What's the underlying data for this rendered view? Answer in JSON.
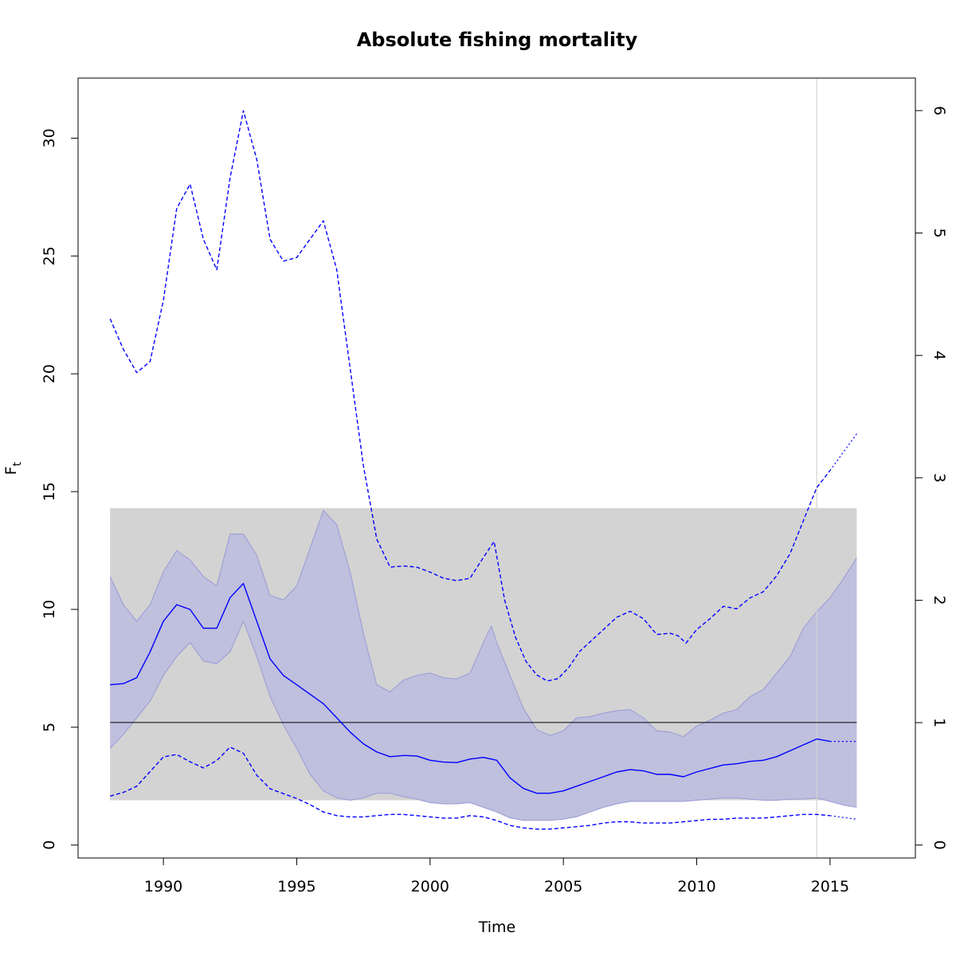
{
  "chart_data": {
    "type": "line",
    "title": "Absolute fishing mortality",
    "xlabel": "Time",
    "ylabel": "F",
    "ylabel_subscript": "t",
    "xlim": [
      1986.8,
      2018.2
    ],
    "ylim": [
      -0.55,
      32.55
    ],
    "ylim_right": [
      -0.106,
      6.266
    ],
    "x_ticks": [
      1990,
      1995,
      2000,
      2005,
      2010,
      2015
    ],
    "y_ticks": [
      0,
      5,
      10,
      15,
      20,
      25,
      30
    ],
    "y_ticks_right": [
      0,
      1,
      2,
      3,
      4,
      5,
      6
    ],
    "grid": false,
    "colors": {
      "estimate": "#0000ff",
      "ci_fill": "#b8b8d8",
      "ci_fill_light": "#e0e0ff",
      "reference_band": "#d3d3d3",
      "reference_line": "#000000",
      "vline": "#d3d3d3"
    },
    "reference_band": {
      "x": [
        1988,
        2016
      ],
      "y": [
        1.9,
        14.3
      ]
    },
    "reference_line": {
      "x": [
        1988,
        2016
      ],
      "y": 5.2
    },
    "vline_x": 2014.5,
    "ci_upper": {
      "x": [
        1988,
        1988.5,
        1989,
        1989.5,
        1990,
        1990.5,
        1991,
        1991.5,
        1992,
        1992.5,
        1993,
        1993.5,
        1994,
        1994.5,
        1995,
        1995.5,
        1996,
        1996.5,
        1997,
        1997.5,
        1998,
        1998.5,
        1999,
        1999.5,
        2000,
        2000.5,
        2001,
        2001.5,
        2002,
        2002.3,
        2002.5,
        2003,
        2003.5,
        2004,
        2004.5,
        2005,
        2005.5,
        2006,
        2006.5,
        2007,
        2007.5,
        2008,
        2008.5,
        2009,
        2009.5,
        2010,
        2010.5,
        2011,
        2011.5,
        2012,
        2012.5,
        2013,
        2013.5,
        2014,
        2014.5,
        2015,
        2015.5,
        2016
      ],
      "values": [
        11.4,
        10.2,
        9.5,
        10.2,
        11.6,
        12.5,
        12.1,
        11.4,
        11.0,
        13.2,
        13.2,
        12.3,
        10.6,
        10.4,
        11.0,
        12.6,
        14.2,
        13.6,
        11.6,
        9.0,
        6.8,
        6.5,
        7.0,
        7.2,
        7.3,
        7.1,
        7.05,
        7.3,
        8.6,
        9.3,
        8.6,
        7.2,
        5.8,
        4.9,
        4.65,
        4.85,
        5.4,
        5.45,
        5.6,
        5.7,
        5.75,
        5.4,
        4.85,
        4.8,
        4.6,
        5.05,
        5.3,
        5.6,
        5.75,
        6.3,
        6.6,
        7.3,
        8.0,
        9.2,
        9.9,
        10.5,
        11.3,
        12.2
      ]
    },
    "ci_lower": {
      "x": [
        1988,
        1988.5,
        1989,
        1989.5,
        1990,
        1990.5,
        1991,
        1991.5,
        1992,
        1992.5,
        1993,
        1993.5,
        1994,
        1994.5,
        1995,
        1995.5,
        1996,
        1996.5,
        1997,
        1997.5,
        1998,
        1998.5,
        1999,
        1999.5,
        2000,
        2000.5,
        2001,
        2001.5,
        2002,
        2002.5,
        2003,
        2003.5,
        2004,
        2004.5,
        2005,
        2005.5,
        2006,
        2006.5,
        2007,
        2007.5,
        2008,
        2008.5,
        2009,
        2009.5,
        2010,
        2010.5,
        2011,
        2011.5,
        2012,
        2012.5,
        2013,
        2013.5,
        2014,
        2014.5,
        2015,
        2015.5,
        2016
      ],
      "values": [
        4.1,
        4.7,
        5.4,
        6.1,
        7.2,
        8.0,
        8.6,
        7.8,
        7.7,
        8.2,
        9.5,
        8.0,
        6.3,
        5.1,
        4.1,
        3.0,
        2.3,
        2.0,
        1.9,
        2.0,
        2.2,
        2.2,
        2.05,
        1.95,
        1.8,
        1.75,
        1.75,
        1.8,
        1.6,
        1.4,
        1.15,
        1.05,
        1.05,
        1.05,
        1.1,
        1.2,
        1.4,
        1.6,
        1.75,
        1.85,
        1.85,
        1.85,
        1.85,
        1.85,
        1.9,
        1.95,
        2.0,
        2.0,
        1.95,
        1.9,
        1.9,
        1.95,
        1.95,
        2.0,
        1.85,
        1.7,
        1.6
      ]
    },
    "estimate": {
      "x": [
        1988,
        1988.5,
        1989,
        1989.5,
        1990,
        1990.5,
        1991,
        1991.5,
        1992,
        1992.5,
        1993,
        1993.5,
        1994,
        1994.5,
        1995,
        1995.5,
        1996,
        1996.5,
        1997,
        1997.5,
        1998,
        1998.5,
        1999,
        1999.5,
        2000,
        2000.5,
        2001,
        2001.5,
        2002,
        2002.5,
        2003,
        2003.5,
        2004,
        2004.5,
        2005,
        2005.5,
        2006,
        2006.5,
        2007,
        2007.5,
        2008,
        2008.5,
        2009,
        2009.5,
        2010,
        2010.5,
        2011,
        2011.5,
        2012,
        2012.5,
        2013,
        2013.5,
        2014,
        2014.5,
        2015
      ],
      "values": [
        6.8,
        6.85,
        7.1,
        8.2,
        9.5,
        10.2,
        10.0,
        9.2,
        9.2,
        10.5,
        11.1,
        9.5,
        7.9,
        7.2,
        6.8,
        6.4,
        6.0,
        5.4,
        4.8,
        4.3,
        3.95,
        3.75,
        3.8,
        3.78,
        3.6,
        3.52,
        3.5,
        3.65,
        3.72,
        3.6,
        2.85,
        2.4,
        2.2,
        2.2,
        2.3,
        2.5,
        2.7,
        2.9,
        3.1,
        3.2,
        3.15,
        3.0,
        3.0,
        2.9,
        3.1,
        3.25,
        3.4,
        3.45,
        3.55,
        3.6,
        3.75,
        4.0,
        4.25,
        4.5,
        4.4
      ]
    },
    "estimate_projection": {
      "x": [
        2015,
        2016
      ],
      "values": [
        4.4,
        4.4
      ]
    },
    "right_axis_upper": {
      "x": [
        1988,
        1988.5,
        1989,
        1989.5,
        1990,
        1990.5,
        1991,
        1991.5,
        1992,
        1992.5,
        1993,
        1993.5,
        1994,
        1994.5,
        1995,
        1995.5,
        1996,
        1996.5,
        1997,
        1997.5,
        1998,
        1998.5,
        1999,
        1999.5,
        2000,
        2000.5,
        2001,
        2001.5,
        2002,
        2002.4,
        2002.8,
        2003.2,
        2003.6,
        2004,
        2004.4,
        2004.8,
        2005.2,
        2005.6,
        2006,
        2006.5,
        2007,
        2007.5,
        2008,
        2008.5,
        2009,
        2009.3,
        2009.6,
        2010,
        2010.5,
        2011,
        2011.5,
        2012,
        2012.5,
        2013,
        2013.5,
        2014,
        2014.5,
        2015
      ],
      "values": [
        4.3,
        4.05,
        3.86,
        3.95,
        4.45,
        5.2,
        5.4,
        4.95,
        4.7,
        5.45,
        6.0,
        5.6,
        4.95,
        4.77,
        4.8,
        4.95,
        5.1,
        4.7,
        3.9,
        3.1,
        2.5,
        2.27,
        2.28,
        2.27,
        2.23,
        2.18,
        2.16,
        2.18,
        2.35,
        2.48,
        2.0,
        1.7,
        1.5,
        1.39,
        1.34,
        1.36,
        1.45,
        1.58,
        1.66,
        1.76,
        1.86,
        1.91,
        1.85,
        1.72,
        1.73,
        1.71,
        1.65,
        1.76,
        1.85,
        1.95,
        1.93,
        2.02,
        2.07,
        2.2,
        2.38,
        2.65,
        2.92,
        3.06
      ]
    },
    "right_axis_upper_projection": {
      "x": [
        2015,
        2016
      ],
      "values": [
        3.06,
        3.36
      ]
    },
    "right_axis_lower": {
      "x": [
        1988,
        1988.5,
        1989,
        1989.5,
        1990,
        1990.5,
        1991,
        1991.5,
        1992,
        1992.5,
        1993,
        1993.5,
        1994,
        1994.5,
        1995,
        1995.5,
        1996,
        1996.5,
        1997,
        1997.5,
        1998,
        1998.5,
        1999,
        1999.5,
        2000,
        2000.5,
        2001,
        2001.5,
        2002,
        2002.5,
        2003,
        2003.5,
        2004,
        2004.5,
        2005,
        2005.5,
        2006,
        2006.5,
        2007,
        2007.5,
        2008,
        2008.5,
        2009,
        2009.5,
        2010,
        2010.5,
        2011,
        2011.5,
        2012,
        2012.5,
        2013,
        2013.5,
        2014,
        2014.5,
        2015
      ],
      "values": [
        0.4,
        0.43,
        0.48,
        0.6,
        0.72,
        0.74,
        0.68,
        0.63,
        0.69,
        0.8,
        0.75,
        0.57,
        0.46,
        0.42,
        0.38,
        0.33,
        0.27,
        0.24,
        0.23,
        0.23,
        0.24,
        0.25,
        0.25,
        0.24,
        0.23,
        0.22,
        0.22,
        0.24,
        0.23,
        0.2,
        0.16,
        0.14,
        0.13,
        0.13,
        0.14,
        0.15,
        0.16,
        0.18,
        0.19,
        0.19,
        0.18,
        0.18,
        0.18,
        0.19,
        0.2,
        0.21,
        0.21,
        0.22,
        0.22,
        0.22,
        0.23,
        0.24,
        0.25,
        0.25,
        0.24
      ]
    },
    "right_axis_lower_projection": {
      "x": [
        2015,
        2016
      ],
      "values": [
        0.24,
        0.21
      ]
    }
  }
}
